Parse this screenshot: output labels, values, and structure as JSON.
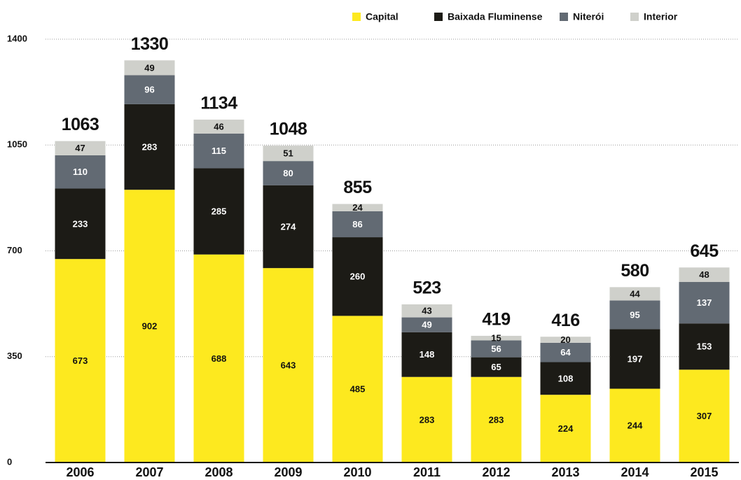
{
  "chart_data": {
    "type": "stacked_bar",
    "categories": [
      "2006",
      "2007",
      "2008",
      "2009",
      "2010",
      "2011",
      "2012",
      "2013",
      "2014",
      "2015"
    ],
    "series": [
      {
        "name": "Capital",
        "color": "#fde91f",
        "values": [
          673,
          902,
          688,
          643,
          485,
          283,
          283,
          224,
          244,
          307
        ]
      },
      {
        "name": "Baixada Fluminense",
        "color": "#1c1b16",
        "values": [
          233,
          283,
          285,
          274,
          260,
          148,
          65,
          108,
          197,
          153
        ]
      },
      {
        "name": "Niterói",
        "color": "#626a73",
        "values": [
          110,
          96,
          115,
          80,
          86,
          49,
          56,
          64,
          95,
          137
        ]
      },
      {
        "name": "Interior",
        "color": "#cfd0cb",
        "values": [
          47,
          49,
          46,
          51,
          24,
          43,
          15,
          20,
          44,
          48
        ]
      }
    ],
    "totals": [
      1063,
      1330,
      1134,
      1048,
      855,
      523,
      419,
      416,
      580,
      645
    ],
    "ylim": [
      0,
      1400
    ],
    "yticks": [
      0,
      350,
      700,
      1050,
      1400
    ],
    "grid": true,
    "legend": "top-right"
  }
}
